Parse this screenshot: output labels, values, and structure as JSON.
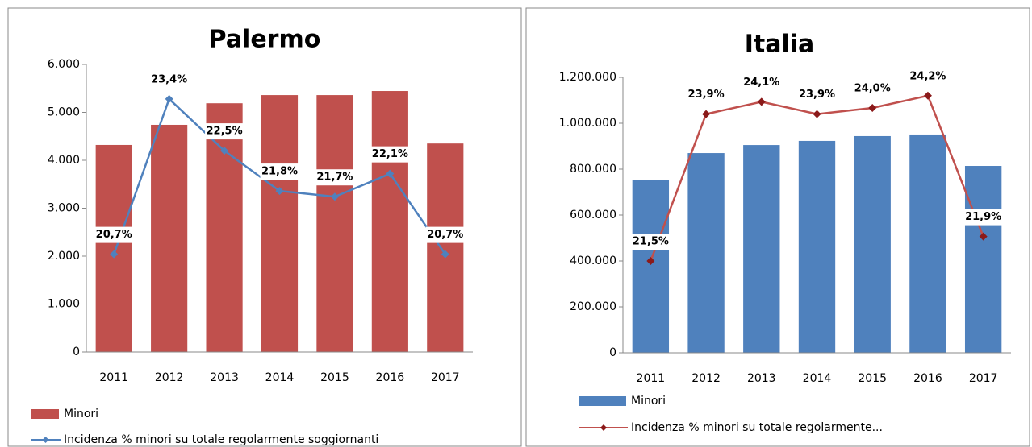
{
  "chart_data": [
    {
      "type": "combo",
      "title": "Palermo",
      "categories": [
        "2011",
        "2012",
        "2013",
        "2014",
        "2015",
        "2016",
        "2017"
      ],
      "series": [
        {
          "name": "Minori",
          "type": "bar",
          "color": "#c0504d",
          "values": [
            4320,
            4740,
            5190,
            5360,
            5360,
            5445,
            4350
          ]
        },
        {
          "name": "Incidenza % minori su totale regolarmente soggiornanti",
          "type": "line",
          "axis": "y2",
          "color": "#4f81bd",
          "marker_color": "#4f81bd",
          "values": [
            20.7,
            23.4,
            22.5,
            21.8,
            21.7,
            22.1,
            20.7
          ],
          "value_labels": [
            "20,7%",
            "23,4%",
            "22,5%",
            "21,8%",
            "21,7%",
            "22,1%",
            "20,7%"
          ]
        }
      ],
      "ylim": [
        0,
        6000
      ],
      "yticks": [
        0,
        {
          "value": 1000,
          "label": "1.000"
        },
        {
          "value": 2000,
          "label": "2.000"
        },
        {
          "value": 3000,
          "label": "3.000"
        },
        {
          "value": 4000,
          "label": "4.000"
        },
        {
          "value": 5000,
          "label": "5.000"
        },
        {
          "value": 6000,
          "label": "6.000"
        }
      ],
      "y2lim": [
        19,
        24
      ]
    },
    {
      "type": "combo",
      "title": "Italia",
      "categories": [
        "2011",
        "2012",
        "2013",
        "2014",
        "2015",
        "2016",
        "2017"
      ],
      "series": [
        {
          "name": "Minori",
          "type": "bar",
          "color": "#4f81bd",
          "values": [
            754000,
            870000,
            905000,
            923000,
            944000,
            951000,
            814000
          ]
        },
        {
          "name": "Incidenza % minori su totale regolarmente...",
          "type": "line",
          "axis": "y2",
          "color": "#c0504d",
          "marker_color": "#8b1a1a",
          "values": [
            21.5,
            23.9,
            24.1,
            23.9,
            24.0,
            24.2,
            21.9
          ],
          "value_labels": [
            "21,5%",
            "23,9%",
            "24,1%",
            "23,9%",
            "24,0%",
            "24,2%",
            "21,9%"
          ]
        }
      ],
      "ylim": [
        0,
        1200000
      ],
      "yticks": [
        0,
        {
          "value": 200000,
          "label": "200.000"
        },
        {
          "value": 400000,
          "label": "400.000"
        },
        {
          "value": 600000,
          "label": "600.000"
        },
        {
          "value": 800000,
          "label": "800.000"
        },
        {
          "value": 1000000,
          "label": "1.000.000"
        },
        {
          "value": 1200000,
          "label": "1.200.000"
        }
      ],
      "y2lim": [
        20,
        24.5
      ]
    }
  ]
}
